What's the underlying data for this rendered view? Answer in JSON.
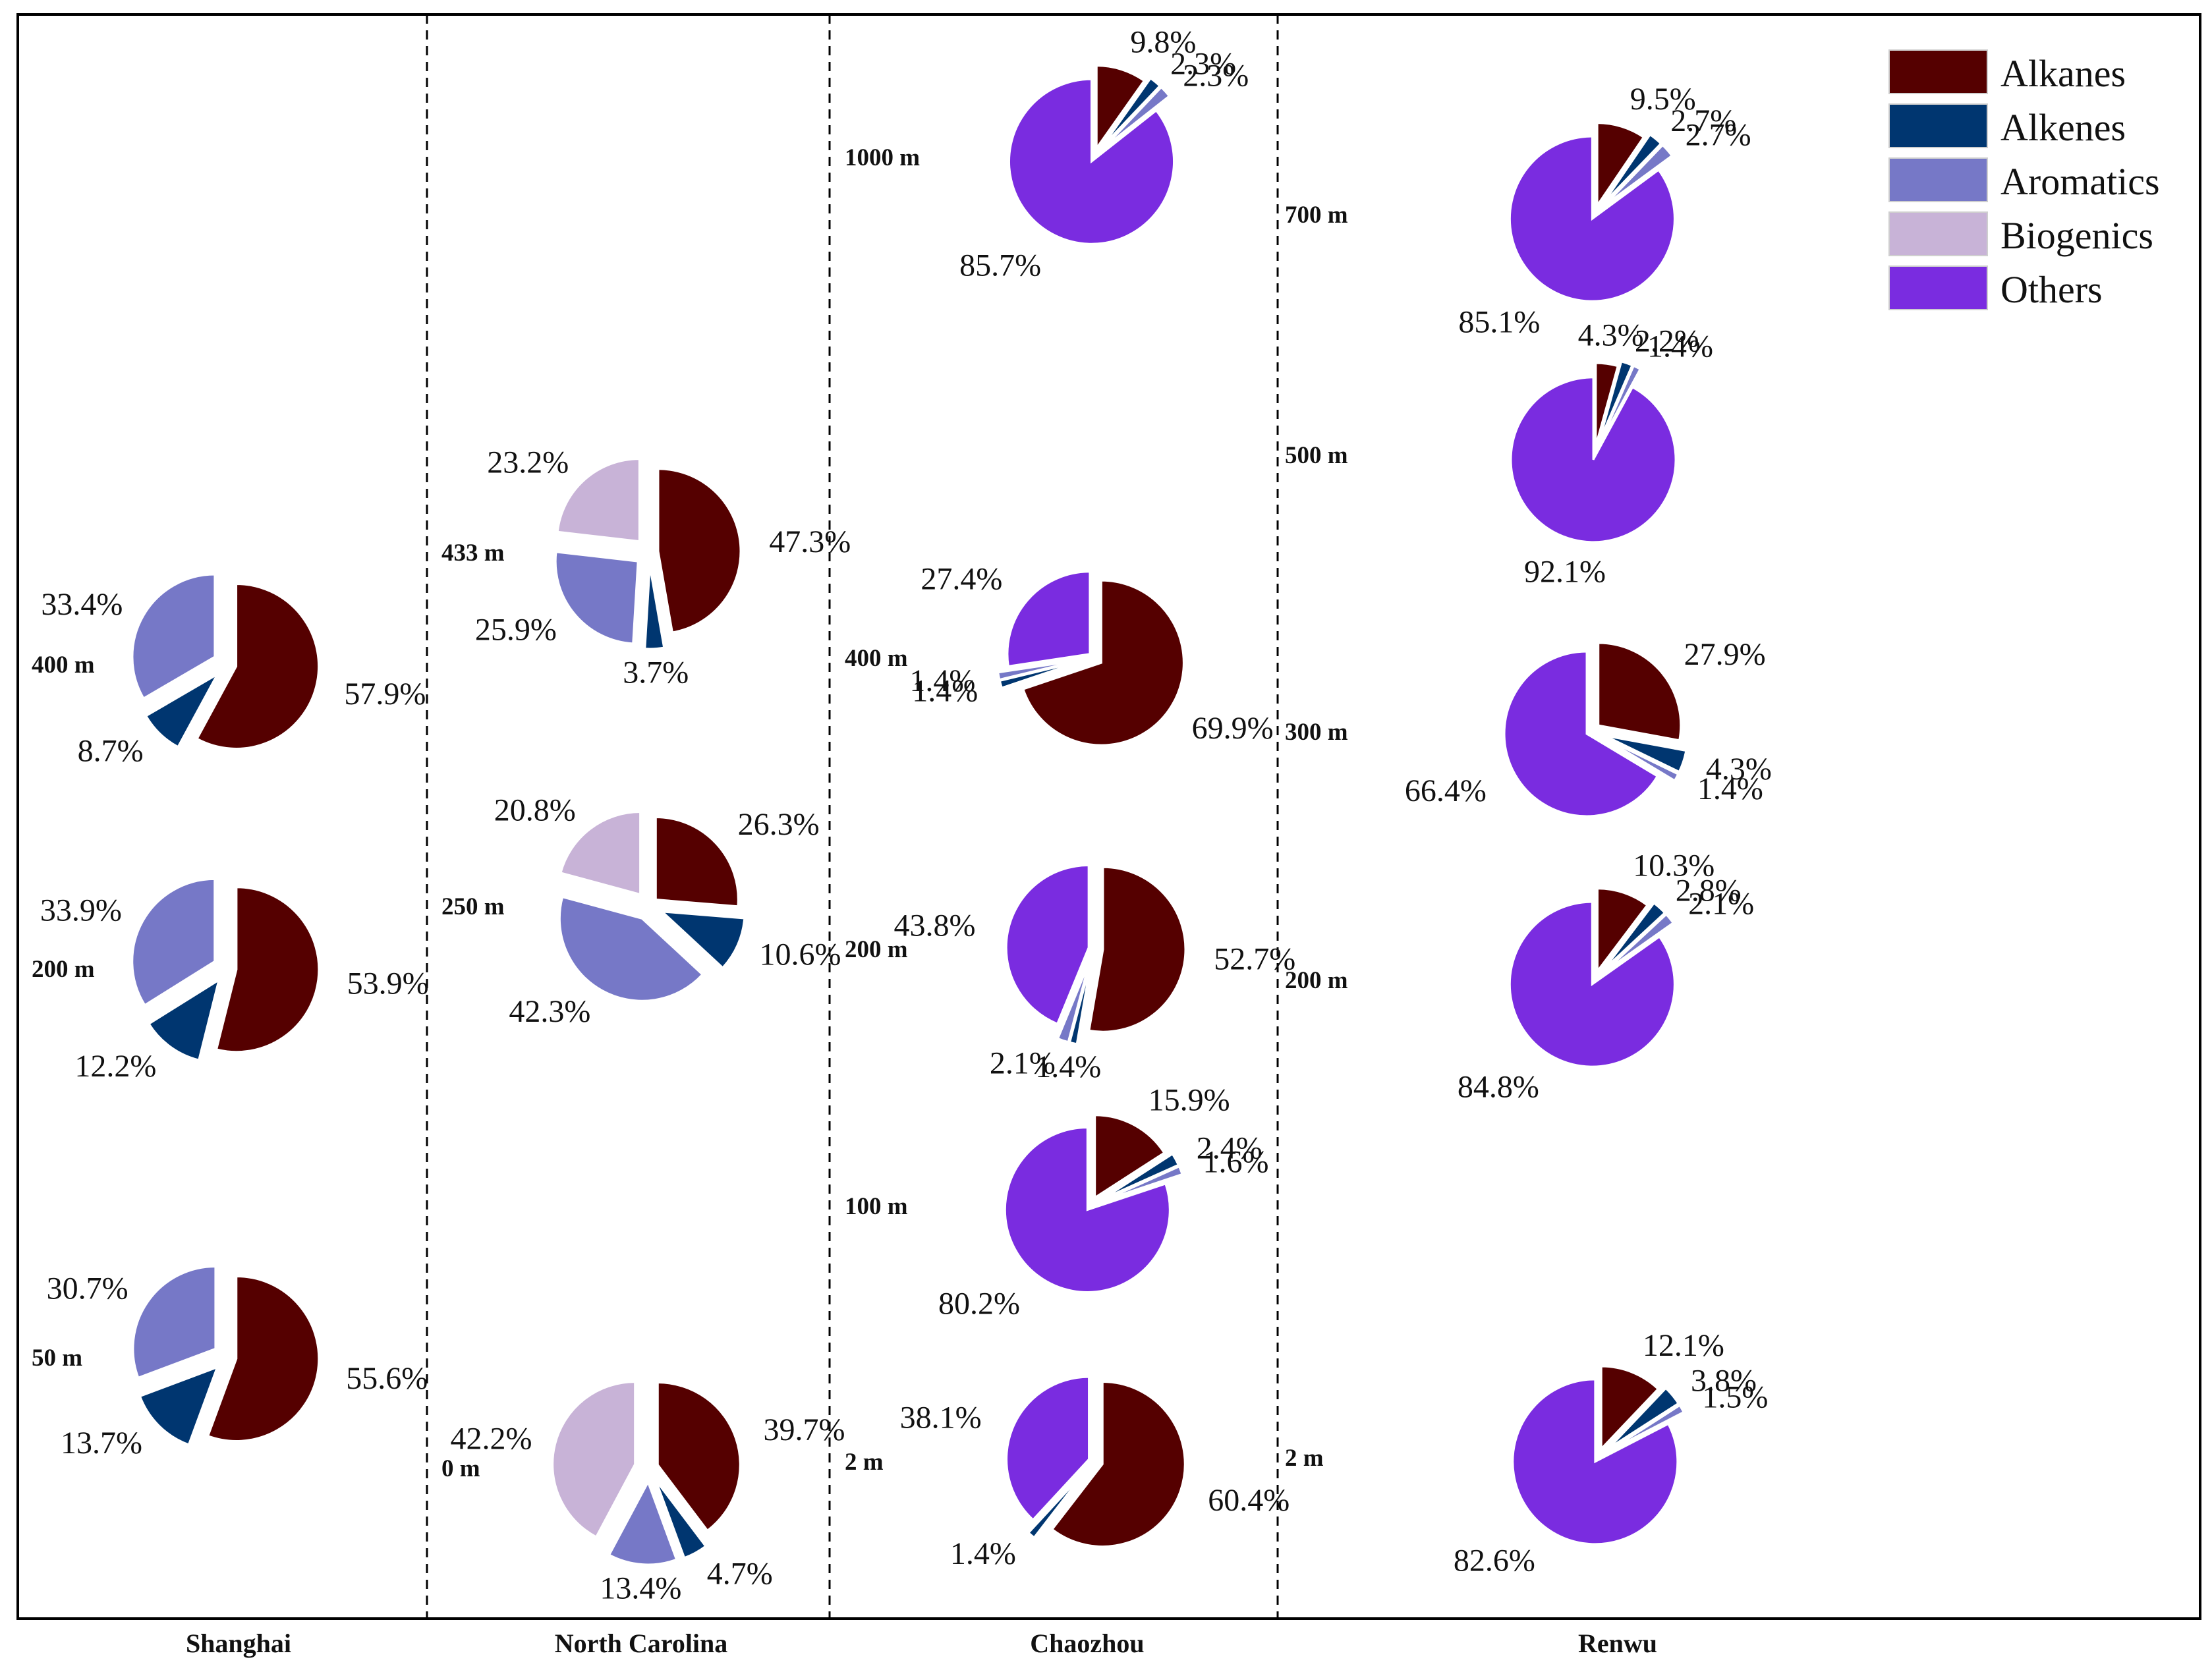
{
  "chart_data": {
    "type": "pie",
    "title": "",
    "categories": [
      "Alkanes",
      "Alkenes",
      "Aromatics",
      "Biogenics",
      "Others"
    ],
    "colors": {
      "Alkanes": "#550000",
      "Alkenes": "#003670",
      "Aromatics": "#7678C7",
      "Biogenics": "#C8B3D7",
      "Others": "#7A2CE0"
    },
    "legend_position": "top-right",
    "sites": [
      {
        "name": "Shanghai",
        "pies": [
          {
            "altitude": "400 m",
            "slices": [
              {
                "category": "Alkanes",
                "value": 57.9,
                "label": "57.9%"
              },
              {
                "category": "Alkenes",
                "value": 8.7,
                "label": "8.7%"
              },
              {
                "category": "Aromatics",
                "value": 33.4,
                "label": "33.4%"
              }
            ]
          },
          {
            "altitude": "200 m",
            "slices": [
              {
                "category": "Alkanes",
                "value": 53.9,
                "label": "53.9%"
              },
              {
                "category": "Alkenes",
                "value": 12.2,
                "label": "12.2%"
              },
              {
                "category": "Aromatics",
                "value": 33.9,
                "label": "33.9%"
              }
            ]
          },
          {
            "altitude": "50 m",
            "slices": [
              {
                "category": "Alkanes",
                "value": 55.6,
                "label": "55.6%"
              },
              {
                "category": "Alkenes",
                "value": 13.7,
                "label": "13.7%"
              },
              {
                "category": "Aromatics",
                "value": 30.7,
                "label": "30.7%"
              }
            ]
          }
        ]
      },
      {
        "name": "North Carolina",
        "pies": [
          {
            "altitude": "433 m",
            "slices": [
              {
                "category": "Alkanes",
                "value": 47.3,
                "label": "47.3%"
              },
              {
                "category": "Alkenes",
                "value": 3.7,
                "label": "3.7%"
              },
              {
                "category": "Aromatics",
                "value": 25.9,
                "label": "25.9%"
              },
              {
                "category": "Biogenics",
                "value": 23.2,
                "label": "23.2%"
              }
            ]
          },
          {
            "altitude": "250 m",
            "slices": [
              {
                "category": "Alkanes",
                "value": 26.3,
                "label": "26.3%"
              },
              {
                "category": "Alkenes",
                "value": 10.6,
                "label": "10.6%"
              },
              {
                "category": "Aromatics",
                "value": 42.3,
                "label": "42.3%"
              },
              {
                "category": "Biogenics",
                "value": 20.8,
                "label": "20.8%"
              }
            ]
          },
          {
            "altitude": "0 m",
            "slices": [
              {
                "category": "Alkanes",
                "value": 39.7,
                "label": "39.7%"
              },
              {
                "category": "Alkenes",
                "value": 4.7,
                "label": "4.7%"
              },
              {
                "category": "Aromatics",
                "value": 13.4,
                "label": "13.4%"
              },
              {
                "category": "Biogenics",
                "value": 42.2,
                "label": "42.2%"
              }
            ]
          }
        ]
      },
      {
        "name": "Chaozhou",
        "pies": [
          {
            "altitude": "1000 m",
            "slices": [
              {
                "category": "Alkanes",
                "value": 9.8,
                "label": "9.8%"
              },
              {
                "category": "Alkenes",
                "value": 2.3,
                "label": "2.3%"
              },
              {
                "category": "Aromatics",
                "value": 2.3,
                "label": "2.3%"
              },
              {
                "category": "Others",
                "value": 85.7,
                "label": "85.7%"
              }
            ]
          },
          {
            "altitude": "400 m",
            "slices": [
              {
                "category": "Alkanes",
                "value": 69.9,
                "label": "69.9%"
              },
              {
                "category": "Alkenes",
                "value": 1.4,
                "label": "1.4%"
              },
              {
                "category": "Aromatics",
                "value": 1.4,
                "label": "1.4%"
              },
              {
                "category": "Others",
                "value": 27.4,
                "label": "27.4%"
              }
            ]
          },
          {
            "altitude": "200 m",
            "slices": [
              {
                "category": "Alkanes",
                "value": 52.7,
                "label": "52.7%"
              },
              {
                "category": "Alkenes",
                "value": 1.4,
                "label": "1.4%"
              },
              {
                "category": "Aromatics",
                "value": 2.1,
                "label": "2.1%"
              },
              {
                "category": "Others",
                "value": 43.8,
                "label": "43.8%"
              }
            ]
          },
          {
            "altitude": "100 m",
            "slices": [
              {
                "category": "Alkanes",
                "value": 15.9,
                "label": "15.9%"
              },
              {
                "category": "Alkenes",
                "value": 2.4,
                "label": "2.4%"
              },
              {
                "category": "Aromatics",
                "value": 1.6,
                "label": "1.6%"
              },
              {
                "category": "Others",
                "value": 80.2,
                "label": "80.2%"
              }
            ]
          },
          {
            "altitude": "2 m",
            "slices": [
              {
                "category": "Alkanes",
                "value": 60.4,
                "label": "60.4%"
              },
              {
                "category": "Alkenes",
                "value": 1.4,
                "label": "1.4%"
              },
              {
                "category": "Others",
                "value": 38.1,
                "label": "38.1%"
              }
            ]
          }
        ]
      },
      {
        "name": "Renwu",
        "pies": [
          {
            "altitude": "700 m",
            "slices": [
              {
                "category": "Alkanes",
                "value": 9.5,
                "label": "9.5%"
              },
              {
                "category": "Alkenes",
                "value": 2.7,
                "label": "2.7%"
              },
              {
                "category": "Aromatics",
                "value": 2.7,
                "label": "2.7%"
              },
              {
                "category": "Others",
                "value": 85.1,
                "label": "85.1%"
              }
            ]
          },
          {
            "altitude": "500 m",
            "slices": [
              {
                "category": "Alkanes",
                "value": 4.3,
                "label": "4.3%"
              },
              {
                "category": "Alkenes",
                "value": 2.2,
                "label": "2.2%"
              },
              {
                "category": "Aromatics",
                "value": 1.4,
                "label": "1.4%"
              },
              {
                "category": "Others",
                "value": 92.1,
                "label": "92.1%"
              }
            ]
          },
          {
            "altitude": "300 m",
            "slices": [
              {
                "category": "Alkanes",
                "value": 27.9,
                "label": "27.9%"
              },
              {
                "category": "Alkenes",
                "value": 4.3,
                "label": "4.3%"
              },
              {
                "category": "Aromatics",
                "value": 1.4,
                "label": "1.4%"
              },
              {
                "category": "Others",
                "value": 66.4,
                "label": "66.4%"
              }
            ]
          },
          {
            "altitude": "200 m",
            "slices": [
              {
                "category": "Alkanes",
                "value": 10.3,
                "label": "10.3%"
              },
              {
                "category": "Alkenes",
                "value": 2.8,
                "label": "2.8%"
              },
              {
                "category": "Aromatics",
                "value": 2.1,
                "label": "2.1%"
              },
              {
                "category": "Others",
                "value": 84.8,
                "label": "84.8%"
              }
            ]
          },
          {
            "altitude": "2 m",
            "slices": [
              {
                "category": "Alkanes",
                "value": 12.1,
                "label": "12.1%"
              },
              {
                "category": "Alkenes",
                "value": 3.8,
                "label": "3.8%"
              },
              {
                "category": "Aromatics",
                "value": 1.5,
                "label": "1.5%"
              },
              {
                "category": "Others",
                "value": 82.6,
                "label": "82.6%"
              }
            ]
          }
        ]
      }
    ]
  }
}
